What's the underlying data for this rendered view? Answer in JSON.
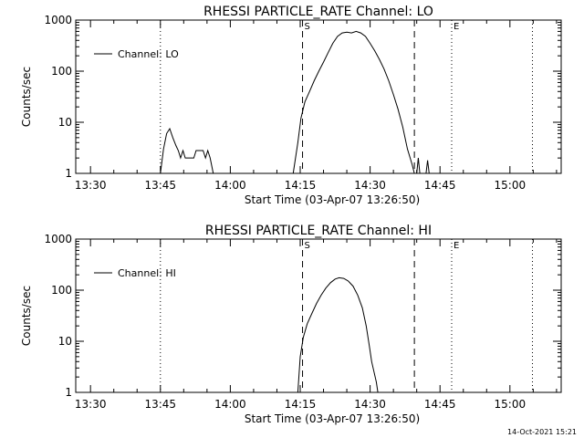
{
  "footer": {
    "timestamp": "14-Oct-2021 15:21"
  },
  "chart_data": [
    {
      "type": "line",
      "title": "RHESSI PARTICLE_RATE Channel: LO",
      "xlabel": "Start Time (03-Apr-07 13:26:50)",
      "ylabel": "Counts/sec",
      "x_ticks": [
        "13:30",
        "13:45",
        "14:00",
        "14:15",
        "14:30",
        "14:45",
        "15:00"
      ],
      "y_ticks": [
        "1",
        "10",
        "100",
        "1000"
      ],
      "y_scale": "log",
      "xlim": [
        "13:26:50",
        "15:11:00"
      ],
      "ylim": [
        1,
        1000
      ],
      "legend": {
        "position": "top-left",
        "entries": [
          "Channel: LO"
        ]
      },
      "markers": [
        {
          "label": "S",
          "time": "14:15:30",
          "style": "dashed"
        },
        {
          "label": "",
          "time": "14:39:30",
          "style": "dashed"
        },
        {
          "label": "E",
          "time": "14:47:30",
          "style": "dotted"
        },
        {
          "label": "",
          "time": "13:45:00",
          "style": "dotted"
        },
        {
          "label": "",
          "time": "15:04:50",
          "style": "dotted"
        }
      ],
      "series": [
        {
          "name": "Channel: LO",
          "segments": [
            [
              [
                "13:45:00",
                1
              ],
              [
                "13:45:40",
                3
              ],
              [
                "13:46:20",
                6
              ],
              [
                "13:47:00",
                7.5
              ],
              [
                "13:47:40",
                5
              ],
              [
                "13:48:20",
                3.5
              ],
              [
                "13:48:50",
                2.8
              ],
              [
                "13:49:20",
                2
              ],
              [
                "13:49:50",
                2.8
              ],
              [
                "13:50:20",
                2
              ],
              [
                "13:51:20",
                2
              ],
              [
                "13:52:10",
                2
              ],
              [
                "13:52:40",
                2.8
              ],
              [
                "13:54:10",
                2.8
              ],
              [
                "13:54:40",
                2
              ],
              [
                "13:55:10",
                2.8
              ],
              [
                "13:55:40",
                2
              ],
              [
                "13:56:20",
                1
              ]
            ],
            [
              [
                "14:13:30",
                1
              ],
              [
                "14:14:30",
                4
              ],
              [
                "14:15:10",
                12
              ],
              [
                "14:16:00",
                25
              ],
              [
                "14:17:00",
                40
              ],
              [
                "14:18:00",
                65
              ],
              [
                "14:19:00",
                100
              ],
              [
                "14:20:00",
                150
              ],
              [
                "14:21:00",
                230
              ],
              [
                "14:22:00",
                350
              ],
              [
                "14:23:00",
                480
              ],
              [
                "14:24:00",
                560
              ],
              [
                "14:25:00",
                580
              ],
              [
                "14:26:00",
                560
              ],
              [
                "14:27:00",
                600
              ],
              [
                "14:28:00",
                560
              ],
              [
                "14:29:00",
                480
              ],
              [
                "14:30:00",
                350
              ],
              [
                "14:31:00",
                250
              ],
              [
                "14:32:00",
                170
              ],
              [
                "14:33:00",
                110
              ],
              [
                "14:34:00",
                65
              ],
              [
                "14:35:00",
                35
              ],
              [
                "14:36:00",
                18
              ],
              [
                "14:37:00",
                8
              ],
              [
                "14:38:00",
                3
              ],
              [
                "14:39:00",
                1.5
              ],
              [
                "14:39:30",
                1
              ]
            ],
            [
              [
                "14:40:00",
                1
              ],
              [
                "14:40:20",
                2
              ],
              [
                "14:40:40",
                1
              ]
            ],
            [
              [
                "14:42:00",
                1
              ],
              [
                "14:42:20",
                1.8
              ],
              [
                "14:42:40",
                1
              ]
            ]
          ]
        }
      ]
    },
    {
      "type": "line",
      "title": "RHESSI PARTICLE_RATE Channel: HI",
      "xlabel": "Start Time (03-Apr-07 13:26:50)",
      "ylabel": "Counts/sec",
      "x_ticks": [
        "13:30",
        "13:45",
        "14:00",
        "14:15",
        "14:30",
        "14:45",
        "15:00"
      ],
      "y_ticks": [
        "1",
        "10",
        "100",
        "1000"
      ],
      "y_scale": "log",
      "xlim": [
        "13:26:50",
        "15:11:00"
      ],
      "ylim": [
        1,
        1000
      ],
      "legend": {
        "position": "top-left",
        "entries": [
          "Channel: HI"
        ]
      },
      "markers": [
        {
          "label": "S",
          "time": "14:15:30",
          "style": "dashed"
        },
        {
          "label": "",
          "time": "14:39:30",
          "style": "dashed"
        },
        {
          "label": "E",
          "time": "14:47:30",
          "style": "dotted"
        },
        {
          "label": "",
          "time": "13:45:00",
          "style": "dotted"
        },
        {
          "label": "",
          "time": "15:04:50",
          "style": "dotted"
        }
      ],
      "series": [
        {
          "name": "Channel: HI",
          "segments": [
            [
              [
                "14:14:30",
                1
              ],
              [
                "14:15:00",
                5
              ],
              [
                "14:15:40",
                12
              ],
              [
                "14:16:30",
                22
              ],
              [
                "14:17:30",
                35
              ],
              [
                "14:18:30",
                55
              ],
              [
                "14:19:30",
                80
              ],
              [
                "14:20:30",
                110
              ],
              [
                "14:21:30",
                140
              ],
              [
                "14:22:30",
                165
              ],
              [
                "14:23:20",
                175
              ],
              [
                "14:24:20",
                170
              ],
              [
                "14:25:20",
                150
              ],
              [
                "14:26:20",
                120
              ],
              [
                "14:27:20",
                80
              ],
              [
                "14:28:20",
                45
              ],
              [
                "14:29:10",
                20
              ],
              [
                "14:29:50",
                8
              ],
              [
                "14:30:20",
                4
              ],
              [
                "14:30:50",
                2.5
              ],
              [
                "14:31:20",
                1.6
              ],
              [
                "14:31:40",
                1
              ]
            ]
          ]
        }
      ]
    }
  ]
}
